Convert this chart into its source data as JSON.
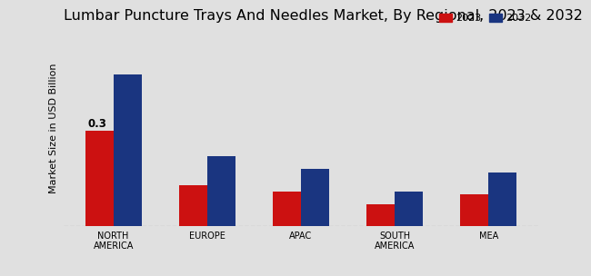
{
  "title": "Lumbar Puncture Trays And Needles Market, By Regional, 2023 & 2032",
  "ylabel": "Market Size in USD Billion",
  "categories": [
    "NORTH\nAMERICA",
    "EUROPE",
    "APAC",
    "SOUTH\nAMERICA",
    "MEA"
  ],
  "values_2023": [
    0.3,
    0.13,
    0.11,
    0.07,
    0.1
  ],
  "values_2032": [
    0.48,
    0.22,
    0.18,
    0.11,
    0.17
  ],
  "color_2023": "#cc1111",
  "color_2032": "#1a3580",
  "annotation_text": "0.3",
  "legend_labels": [
    "2023",
    "2032"
  ],
  "background_color": "#e0e0e0",
  "bar_width": 0.3,
  "ylim": [
    0,
    0.62
  ],
  "title_fontsize": 11.5,
  "label_fontsize": 8,
  "tick_fontsize": 7,
  "bottom_bar_color": "#bb0000"
}
